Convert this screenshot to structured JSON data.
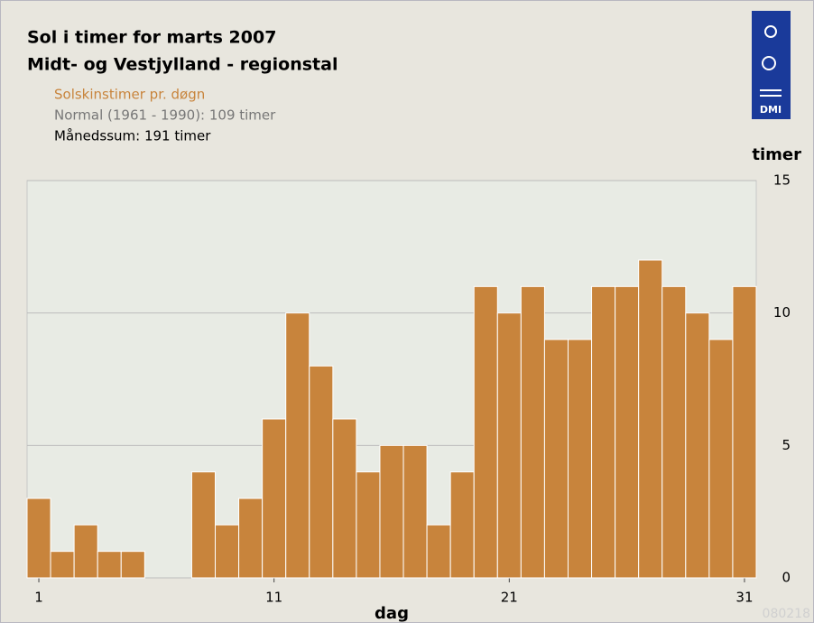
{
  "chart_data": {
    "type": "bar",
    "title": "Sol i timer for marts 2007",
    "subtitle": "Midt- og Vestjylland - regionstal",
    "notes": [
      "Normal (1961 - 1990): 109 timer",
      "Månedssum: 191 timer"
    ],
    "x_label": "dag",
    "y_label": "timer",
    "code": "080218",
    "categories": [
      "1",
      null,
      null,
      null,
      null,
      null,
      null,
      null,
      null,
      null,
      "11",
      null,
      null,
      null,
      null,
      null,
      null,
      null,
      null,
      null,
      "21",
      null,
      null,
      null,
      null,
      null,
      null,
      null,
      null,
      null,
      "31"
    ],
    "series": [
      {
        "name": "Solskinstimer pr. døgn",
        "color": "#c8843c",
        "values": [
          3,
          1,
          2,
          1,
          1,
          0,
          0,
          4,
          2,
          3,
          6,
          10,
          8,
          6,
          4,
          5,
          5,
          2,
          4,
          11,
          10,
          11,
          9,
          9,
          11,
          11,
          12,
          11,
          10,
          9,
          11
        ]
      }
    ],
    "ylim": [
      0,
      15
    ],
    "yticks": [
      0,
      5,
      10,
      15
    ],
    "grid": true
  }
}
